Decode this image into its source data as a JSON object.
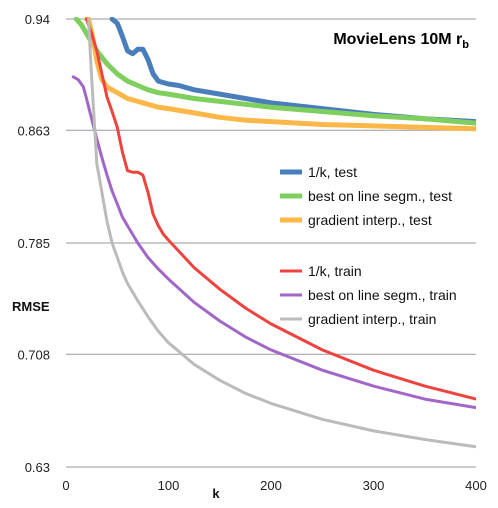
{
  "chart_data": {
    "type": "line",
    "title": "MovieLens 10M r",
    "title_subscript": "b",
    "xlabel": "k",
    "ylabel": "RMSE",
    "xlim": [
      0,
      400
    ],
    "ylim": [
      0.63,
      0.94
    ],
    "xticks": [
      0,
      100,
      200,
      300,
      400
    ],
    "yticks": [
      0.63,
      0.708,
      0.785,
      0.863,
      0.94
    ],
    "ytick_labels": [
      "0.63",
      "0.708",
      "0.785",
      "0.863",
      "0.94"
    ],
    "grid": "horizontal",
    "legend_groups": [
      {
        "placement": "right-middle",
        "entries": [
          "1/k, test",
          "best on line segm., test",
          "gradient interp., test"
        ]
      },
      {
        "placement": "right-lower",
        "entries": [
          "1/k, train",
          "best on line segm., train",
          "gradient interp., train"
        ]
      }
    ],
    "series": [
      {
        "name": "1/k, test",
        "color": "#4a7ebb",
        "x": [
          45,
          50,
          55,
          60,
          65,
          70,
          75,
          80,
          85,
          90,
          100,
          110,
          125,
          150,
          175,
          200,
          250,
          300,
          350,
          400
        ],
        "y": [
          0.94,
          0.937,
          0.928,
          0.918,
          0.916,
          0.919,
          0.919,
          0.912,
          0.902,
          0.897,
          0.895,
          0.894,
          0.891,
          0.888,
          0.885,
          0.882,
          0.878,
          0.874,
          0.871,
          0.869
        ]
      },
      {
        "name": "best on line segm., test",
        "color": "#7fcf5f",
        "x": [
          10,
          15,
          20,
          25,
          30,
          40,
          50,
          60,
          70,
          80,
          90,
          100,
          125,
          150,
          175,
          200,
          250,
          300,
          350,
          400
        ],
        "y": [
          0.94,
          0.936,
          0.93,
          0.924,
          0.918,
          0.909,
          0.902,
          0.897,
          0.894,
          0.891,
          0.889,
          0.888,
          0.885,
          0.883,
          0.881,
          0.879,
          0.876,
          0.873,
          0.871,
          0.868
        ]
      },
      {
        "name": "gradient interp., test",
        "color": "#fbb848",
        "x": [
          20,
          22,
          25,
          28,
          30,
          35,
          40,
          45,
          50,
          55,
          60,
          70,
          80,
          90,
          100,
          125,
          150,
          175,
          200,
          250,
          300,
          350,
          400
        ],
        "y": [
          0.94,
          0.94,
          0.931,
          0.92,
          0.911,
          0.898,
          0.893,
          0.891,
          0.889,
          0.887,
          0.885,
          0.883,
          0.881,
          0.879,
          0.878,
          0.875,
          0.872,
          0.87,
          0.869,
          0.867,
          0.866,
          0.865,
          0.864
        ]
      },
      {
        "name": "1/k, train",
        "color": "#ee4440",
        "x": [
          20,
          25,
          30,
          35,
          40,
          45,
          50,
          55,
          60,
          65,
          70,
          75,
          80,
          85,
          90,
          95,
          100,
          125,
          150,
          175,
          200,
          250,
          300,
          350,
          400
        ],
        "y": [
          0.94,
          0.93,
          0.918,
          0.902,
          0.886,
          0.876,
          0.865,
          0.848,
          0.835,
          0.834,
          0.834,
          0.832,
          0.82,
          0.805,
          0.797,
          0.791,
          0.787,
          0.768,
          0.753,
          0.74,
          0.729,
          0.711,
          0.697,
          0.686,
          0.677
        ]
      },
      {
        "name": "best on line segm., train",
        "color": "#a266c8",
        "x": [
          7,
          12,
          17,
          20,
          25,
          30,
          35,
          40,
          45,
          50,
          55,
          60,
          70,
          80,
          90,
          100,
          125,
          150,
          175,
          200,
          250,
          300,
          350,
          400
        ],
        "y": [
          0.9,
          0.898,
          0.893,
          0.885,
          0.871,
          0.857,
          0.844,
          0.832,
          0.821,
          0.812,
          0.803,
          0.797,
          0.785,
          0.775,
          0.767,
          0.76,
          0.744,
          0.731,
          0.72,
          0.711,
          0.697,
          0.686,
          0.677,
          0.671
        ]
      },
      {
        "name": "gradient interp., train",
        "color": "#bbbbbb",
        "x": [
          22,
          25,
          30,
          35,
          40,
          45,
          50,
          55,
          60,
          70,
          80,
          90,
          100,
          125,
          150,
          175,
          200,
          250,
          300,
          350,
          400
        ],
        "y": [
          0.94,
          0.9,
          0.84,
          0.82,
          0.8,
          0.785,
          0.775,
          0.765,
          0.757,
          0.745,
          0.734,
          0.724,
          0.716,
          0.701,
          0.69,
          0.681,
          0.674,
          0.663,
          0.655,
          0.649,
          0.644
        ]
      }
    ]
  }
}
